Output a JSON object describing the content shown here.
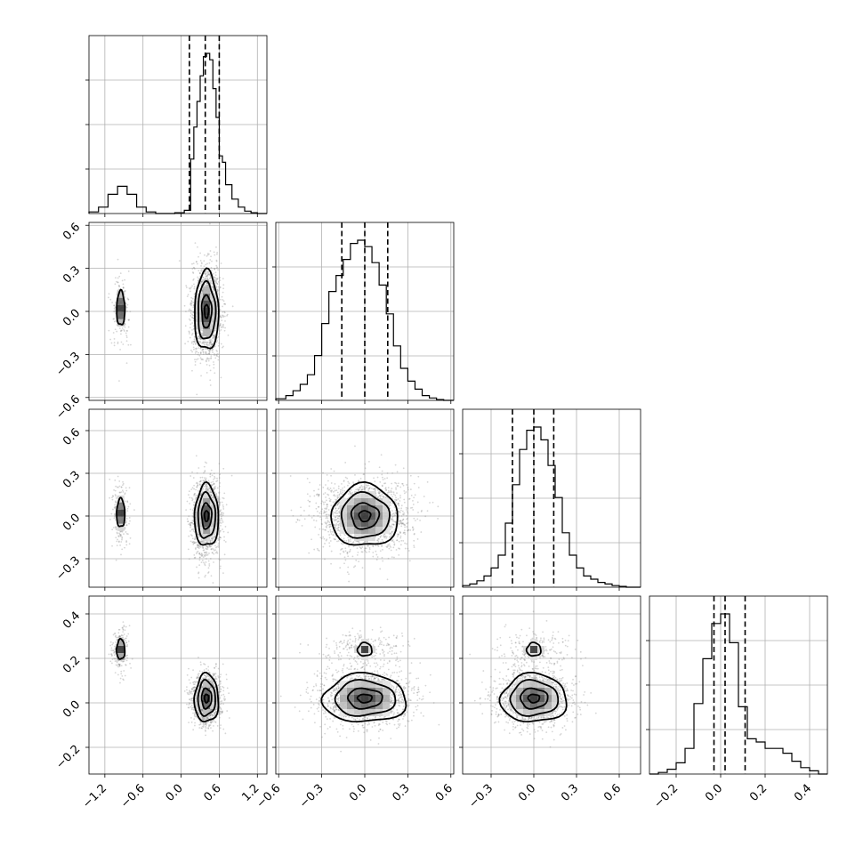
{
  "chart_data": {
    "type": "corner",
    "title": "",
    "n_params": 4,
    "params": [
      {
        "label": "",
        "range": [
          -1.45,
          1.35
        ],
        "ticks": [
          -1.2,
          -0.6,
          0.0,
          0.6,
          1.2
        ],
        "tick_labels": [
          "−1.2",
          "−0.6",
          "0.0",
          "0.6",
          "1.2"
        ],
        "quantiles": [
          0.13,
          0.38,
          0.6
        ],
        "hist_edges": [
          -1.45,
          -1.3,
          -1.15,
          -1.0,
          -0.85,
          -0.7,
          -0.55,
          -0.4,
          -0.25,
          -0.1,
          0.05,
          0.15,
          0.2,
          0.25,
          0.3,
          0.35,
          0.4,
          0.45,
          0.5,
          0.55,
          0.6,
          0.65,
          0.7,
          0.8,
          0.9,
          1.0,
          1.1,
          1.2,
          1.35
        ],
        "hist_counts": [
          0.01,
          0.04,
          0.12,
          0.17,
          0.12,
          0.04,
          0.01,
          0.0,
          0.0,
          0.005,
          0.02,
          0.34,
          0.54,
          0.7,
          0.86,
          0.98,
          1.0,
          0.96,
          0.78,
          0.6,
          0.36,
          0.32,
          0.18,
          0.09,
          0.04,
          0.015,
          0.005,
          0.0
        ]
      },
      {
        "label": "",
        "range": [
          -0.62,
          0.62
        ],
        "ticks": [
          -0.6,
          -0.3,
          0.0,
          0.3,
          0.6
        ],
        "tick_labels": [
          "−0.6",
          "−0.3",
          "0.0",
          "0.3",
          "0.6"
        ],
        "quantiles": [
          -0.16,
          0.0,
          0.16
        ],
        "hist_edges": [
          -0.62,
          -0.55,
          -0.5,
          -0.45,
          -0.4,
          -0.35,
          -0.3,
          -0.25,
          -0.2,
          -0.15,
          -0.1,
          -0.05,
          0.0,
          0.05,
          0.1,
          0.15,
          0.2,
          0.25,
          0.3,
          0.35,
          0.4,
          0.45,
          0.5,
          0.55,
          0.62
        ],
        "hist_counts": [
          0.01,
          0.03,
          0.06,
          0.1,
          0.16,
          0.28,
          0.48,
          0.68,
          0.78,
          0.88,
          0.98,
          1.0,
          0.96,
          0.86,
          0.72,
          0.54,
          0.34,
          0.2,
          0.12,
          0.07,
          0.03,
          0.015,
          0.005,
          0.0
        ]
      },
      {
        "label": "",
        "range": [
          -0.5,
          0.75
        ],
        "ticks": [
          -0.3,
          0.0,
          0.3,
          0.6
        ],
        "tick_labels": [
          "−0.3",
          "0.0",
          "0.3",
          "0.6"
        ],
        "quantiles": [
          -0.15,
          0.0,
          0.14
        ],
        "hist_edges": [
          -0.5,
          -0.45,
          -0.4,
          -0.35,
          -0.3,
          -0.25,
          -0.2,
          -0.15,
          -0.1,
          -0.05,
          0.0,
          0.05,
          0.1,
          0.15,
          0.2,
          0.25,
          0.3,
          0.35,
          0.4,
          0.45,
          0.5,
          0.55,
          0.6,
          0.65,
          0.75
        ],
        "hist_counts": [
          0.01,
          0.02,
          0.04,
          0.07,
          0.12,
          0.2,
          0.4,
          0.64,
          0.86,
          0.98,
          1.0,
          0.92,
          0.76,
          0.56,
          0.34,
          0.2,
          0.12,
          0.07,
          0.05,
          0.03,
          0.02,
          0.01,
          0.005,
          0.0
        ]
      },
      {
        "label": "",
        "range": [
          -0.32,
          0.48
        ],
        "ticks": [
          -0.2,
          0.0,
          0.2,
          0.4
        ],
        "tick_labels": [
          "−0.2",
          "0.0",
          "0.2",
          "0.4"
        ],
        "quantiles": [
          -0.03,
          0.02,
          0.11
        ],
        "hist_edges": [
          -0.32,
          -0.28,
          -0.24,
          -0.2,
          -0.16,
          -0.12,
          -0.08,
          -0.04,
          0.0,
          0.04,
          0.08,
          0.12,
          0.16,
          0.2,
          0.24,
          0.28,
          0.32,
          0.36,
          0.4,
          0.44,
          0.48
        ],
        "hist_counts": [
          0.0,
          0.01,
          0.03,
          0.07,
          0.16,
          0.44,
          0.72,
          0.94,
          1.0,
          0.82,
          0.42,
          0.22,
          0.2,
          0.16,
          0.16,
          0.13,
          0.08,
          0.04,
          0.02,
          0.0
        ]
      }
    ],
    "modes": {
      "p0": [
        {
          "mean": 0.4,
          "sd": 0.11,
          "weight": 0.88
        },
        {
          "mean": -0.95,
          "sd": 0.07,
          "weight": 0.12
        }
      ],
      "p1": [
        {
          "mean": 0.0,
          "sd": 0.16
        }
      ],
      "p2": [
        {
          "mean": 0.0,
          "sd": 0.13
        }
      ],
      "p3": [
        {
          "mean": 0.02,
          "sd": 0.06
        },
        {
          "mean": 0.24,
          "sd": 0.05
        }
      ]
    },
    "grid": true
  }
}
